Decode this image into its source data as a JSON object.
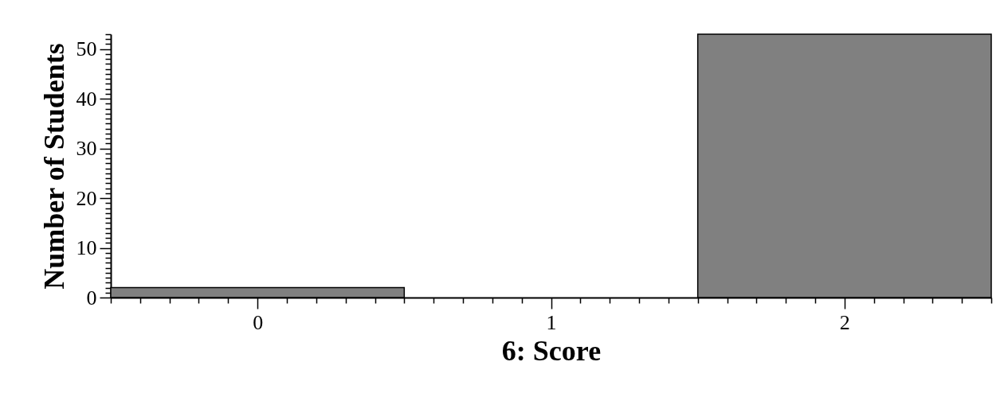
{
  "chart_data": {
    "type": "histogram",
    "xlabel": "6: Score",
    "ylabel": "Number of Students",
    "bins": [
      -0.5,
      0.5,
      1.5,
      2.5
    ],
    "values": [
      2,
      0,
      53
    ],
    "color": "#808080",
    "xlim": [
      -0.5,
      2.5
    ],
    "ylim": [
      0,
      53
    ],
    "xticks": [
      {
        "value": -0.5,
        "label": null
      },
      {
        "value": -0.4,
        "label": null
      },
      {
        "value": -0.3,
        "label": null
      },
      {
        "value": -0.2,
        "label": null
      },
      {
        "value": -0.1,
        "label": null
      },
      0,
      {
        "value": 0.1,
        "label": null
      },
      {
        "value": 0.2,
        "label": null
      },
      {
        "value": 0.3,
        "label": null
      },
      {
        "value": 0.4,
        "label": null
      },
      {
        "value": 0.5,
        "label": null
      },
      {
        "value": 0.6,
        "label": null
      },
      {
        "value": 0.7,
        "label": null
      },
      {
        "value": 0.8,
        "label": null
      },
      {
        "value": 0.9,
        "label": null
      },
      1,
      {
        "value": 1.1,
        "label": null
      },
      {
        "value": 1.2,
        "label": null
      },
      {
        "value": 1.3,
        "label": null
      },
      {
        "value": 1.4,
        "label": null
      },
      {
        "value": 1.5,
        "label": null
      },
      {
        "value": 1.6,
        "label": null
      },
      {
        "value": 1.7,
        "label": null
      },
      {
        "value": 1.8,
        "label": null
      },
      {
        "value": 1.9,
        "label": null
      },
      2,
      {
        "value": 2.1,
        "label": null
      },
      {
        "value": 2.2,
        "label": null
      },
      {
        "value": 2.3,
        "label": null
      },
      {
        "value": 2.4,
        "label": null
      },
      {
        "value": 2.5,
        "label": null
      }
    ],
    "yticks": [
      0,
      {
        "value": 1,
        "label": null
      },
      {
        "value": 2,
        "label": null
      },
      {
        "value": 3,
        "label": null
      },
      {
        "value": 4,
        "label": null
      },
      {
        "value": 5,
        "label": null
      },
      {
        "value": 6,
        "label": null
      },
      {
        "value": 7,
        "label": null
      },
      {
        "value": 8,
        "label": null
      },
      {
        "value": 9,
        "label": null
      },
      10,
      {
        "value": 11,
        "label": null
      },
      {
        "value": 12,
        "label": null
      },
      {
        "value": 13,
        "label": null
      },
      {
        "value": 14,
        "label": null
      },
      {
        "value": 15,
        "label": null
      },
      {
        "value": 16,
        "label": null
      },
      {
        "value": 17,
        "label": null
      },
      {
        "value": 18,
        "label": null
      },
      {
        "value": 19,
        "label": null
      },
      20,
      {
        "value": 21,
        "label": null
      },
      {
        "value": 22,
        "label": null
      },
      {
        "value": 23,
        "label": null
      },
      {
        "value": 24,
        "label": null
      },
      {
        "value": 25,
        "label": null
      },
      {
        "value": 26,
        "label": null
      },
      {
        "value": 27,
        "label": null
      },
      {
        "value": 28,
        "label": null
      },
      {
        "value": 29,
        "label": null
      },
      30,
      {
        "value": 31,
        "label": null
      },
      {
        "value": 32,
        "label": null
      },
      {
        "value": 33,
        "label": null
      },
      {
        "value": 34,
        "label": null
      },
      {
        "value": 35,
        "label": null
      },
      {
        "value": 36,
        "label": null
      },
      {
        "value": 37,
        "label": null
      },
      {
        "value": 38,
        "label": null
      },
      {
        "value": 39,
        "label": null
      },
      40,
      {
        "value": 41,
        "label": null
      },
      {
        "value": 42,
        "label": null
      },
      {
        "value": 43,
        "label": null
      },
      {
        "value": 44,
        "label": null
      },
      {
        "value": 45,
        "label": null
      },
      {
        "value": 46,
        "label": null
      },
      {
        "value": 47,
        "label": null
      },
      {
        "value": 48,
        "label": null
      },
      {
        "value": 49,
        "label": null
      },
      50,
      {
        "value": 51,
        "label": null
      },
      {
        "value": 52,
        "label": null
      },
      {
        "value": 53,
        "label": null
      }
    ],
    "grid": false
  }
}
